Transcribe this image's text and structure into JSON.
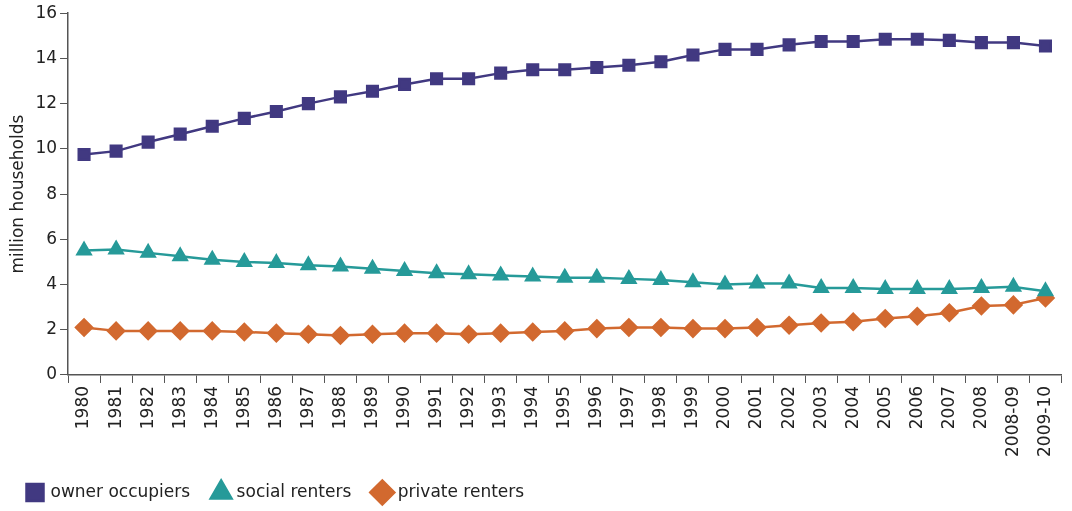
{
  "chart_data": {
    "type": "line",
    "ylabel": "million households",
    "categories": [
      "1980",
      "1981",
      "1982",
      "1983",
      "1984",
      "1985",
      "1986",
      "1987",
      "1988",
      "1989",
      "1990",
      "1991",
      "1992",
      "1993",
      "1994",
      "1995",
      "1996",
      "1997",
      "1998",
      "1999",
      "2000",
      "2001",
      "2002",
      "2003",
      "2004",
      "2005",
      "2006",
      "2007",
      "2008",
      "2008-09",
      "2009-10"
    ],
    "series": [
      {
        "name": "owner occupiers",
        "color": "#413981",
        "marker": "square",
        "values": [
          9.75,
          9.9,
          10.3,
          10.65,
          11.0,
          11.35,
          11.65,
          12.0,
          12.3,
          12.55,
          12.85,
          13.1,
          13.1,
          13.35,
          13.5,
          13.5,
          13.6,
          13.7,
          13.85,
          14.15,
          14.4,
          14.4,
          14.6,
          14.75,
          14.75,
          14.85,
          14.85,
          14.8,
          14.7,
          14.7,
          14.55
        ]
      },
      {
        "name": "social renters",
        "color": "#269a99",
        "marker": "triangle",
        "values": [
          5.5,
          5.55,
          5.4,
          5.25,
          5.1,
          5.0,
          4.95,
          4.85,
          4.8,
          4.7,
          4.6,
          4.5,
          4.45,
          4.4,
          4.35,
          4.3,
          4.3,
          4.25,
          4.2,
          4.1,
          4.0,
          4.05,
          4.05,
          3.85,
          3.85,
          3.8,
          3.8,
          3.8,
          3.85,
          3.9,
          3.7
        ]
      },
      {
        "name": "private renters",
        "color": "#d2692f",
        "marker": "diamond",
        "values": [
          2.1,
          1.95,
          1.95,
          1.95,
          1.95,
          1.9,
          1.85,
          1.8,
          1.75,
          1.8,
          1.85,
          1.85,
          1.8,
          1.85,
          1.9,
          1.95,
          2.05,
          2.1,
          2.1,
          2.05,
          2.05,
          2.1,
          2.2,
          2.3,
          2.35,
          2.5,
          2.6,
          2.75,
          3.05,
          3.1,
          3.4
        ]
      }
    ],
    "ylim": [
      0,
      16
    ],
    "yticks": [
      0,
      2,
      4,
      6,
      8,
      10,
      12,
      14,
      16
    ],
    "grid": false,
    "legend": "bottom left",
    "line_style": "solid"
  }
}
